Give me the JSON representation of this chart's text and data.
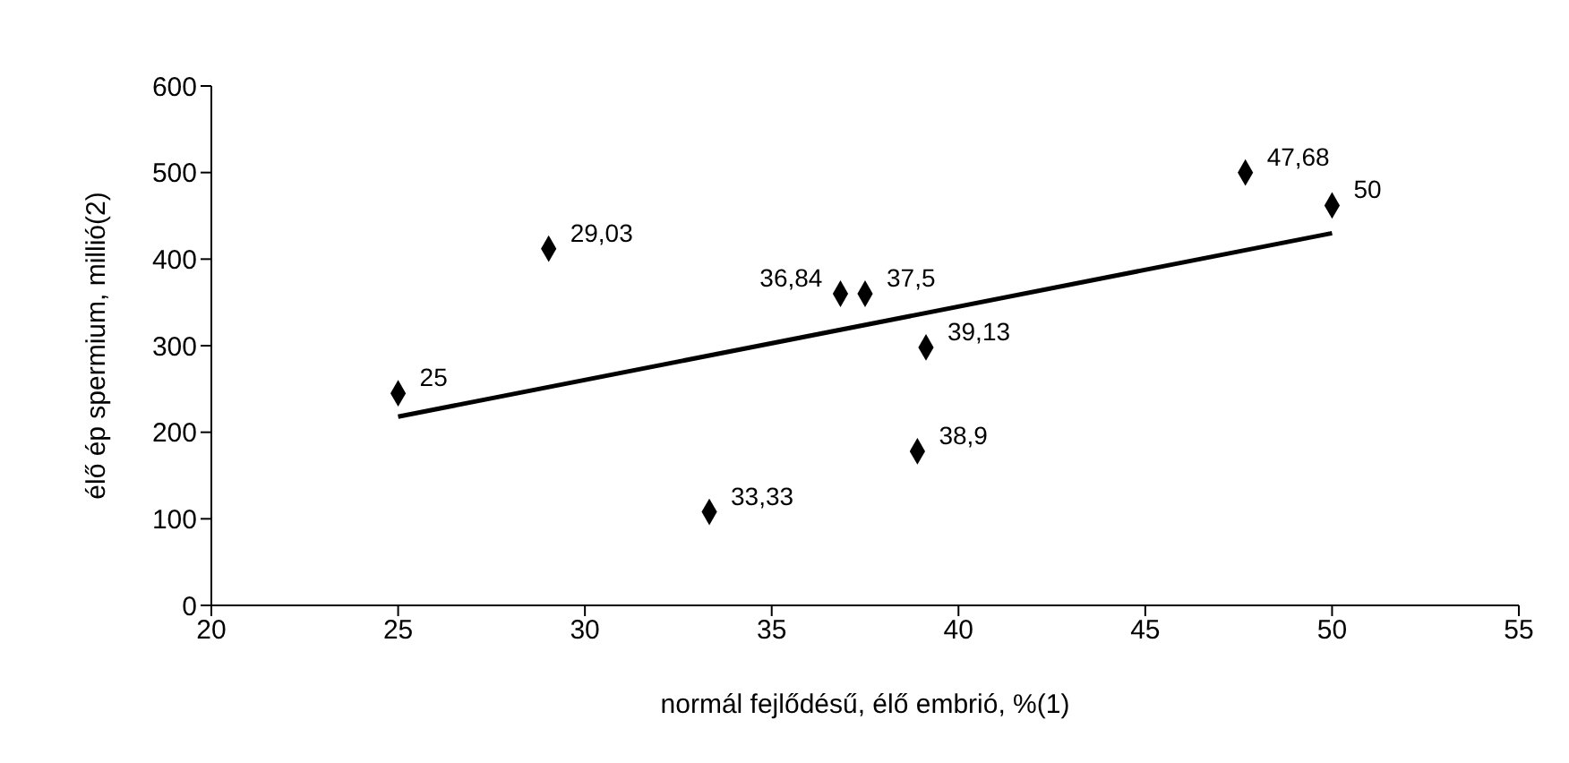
{
  "chart_data": {
    "type": "scatter",
    "xlabel": "normál fejlődésű, élő embrió, %(1)",
    "ylabel": "élő ép spermium, millió(2)",
    "xlim": [
      20,
      55
    ],
    "xticks": [
      20,
      25,
      30,
      35,
      40,
      45,
      50,
      55
    ],
    "ylim": [
      0,
      600
    ],
    "yticks": [
      0,
      100,
      200,
      300,
      400,
      500,
      600
    ],
    "grid": false,
    "legend": false,
    "series": [
      {
        "type": "scatter",
        "color": "#000000",
        "marker": "diamond",
        "x": [
          25,
          29.03,
          33.33,
          36.84,
          37.5,
          38.9,
          39.13,
          47.68,
          50
        ],
        "values": [
          245,
          412,
          108,
          360,
          360,
          178,
          298,
          500,
          462
        ]
      },
      {
        "type": "line",
        "color": "#000000",
        "marker": "none",
        "x": [
          25,
          50
        ],
        "values": [
          218,
          430
        ]
      }
    ],
    "annotations": [
      {
        "text": "25",
        "x": 25,
        "y": 245
      },
      {
        "text": "29,03",
        "x": 29.03,
        "y": 412
      },
      {
        "text": "33,33",
        "x": 33.33,
        "y": 108
      },
      {
        "text": "36,84",
        "x": 36.84,
        "y": 360
      },
      {
        "text": "37,5",
        "x": 37.5,
        "y": 360
      },
      {
        "text": "38,9",
        "x": 38.9,
        "y": 178
      },
      {
        "text": "39,13",
        "x": 39.13,
        "y": 298
      },
      {
        "text": "47,68",
        "x": 47.68,
        "y": 500
      },
      {
        "text": "50",
        "x": 50,
        "y": 462
      }
    ]
  }
}
